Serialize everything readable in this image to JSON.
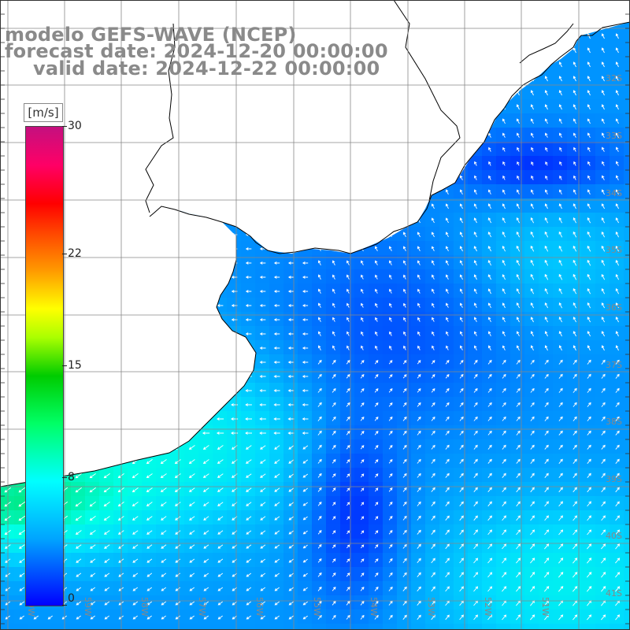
{
  "title": {
    "line1": "modelo GEFS-WAVE (NCEP)",
    "line2": "forecast date: 2024-12-20 00:00:00",
    "line3": "valid date: 2024-12-22 00:00:00"
  },
  "colorbar": {
    "unit": "[m/s]",
    "ticks": [
      "30",
      "22",
      "15",
      "8",
      "0"
    ],
    "range": [
      0,
      30
    ],
    "colors": [
      "#0000ff",
      "#00a5ff",
      "#00ffff",
      "#00cc00",
      "#ffff00",
      "#ff0000",
      "#c4107f"
    ]
  },
  "map": {
    "land_color": "#ffffff",
    "coast_color": "#000000",
    "grid_color": "#888888",
    "label_color": "#888888",
    "lat_labels": [
      "32S",
      "33S",
      "34S",
      "35S",
      "36S",
      "37S",
      "38S",
      "39S",
      "40S",
      "41S"
    ],
    "lon_labels": [
      "60W",
      "59W",
      "58W",
      "57W",
      "56W",
      "55W",
      "54W",
      "53W",
      "52W",
      "51W"
    ]
  }
}
